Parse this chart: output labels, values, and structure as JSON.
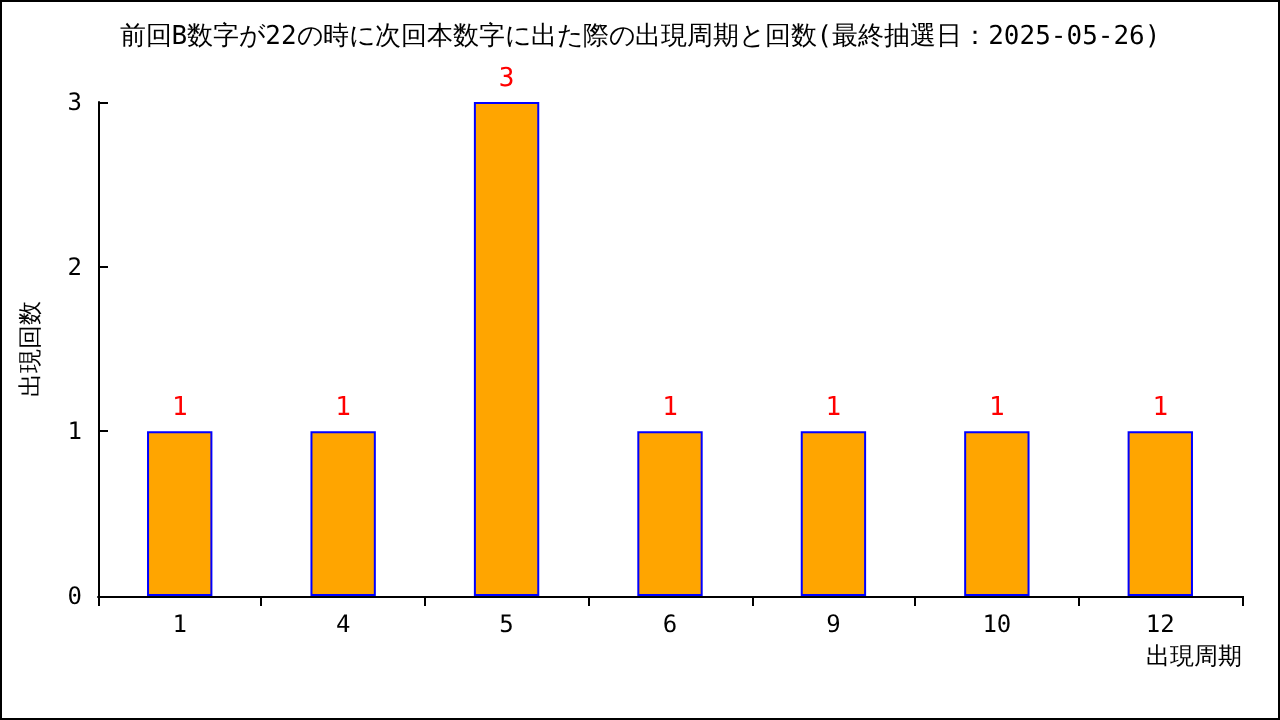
{
  "chart_data": {
    "type": "bar",
    "title": "前回B数字が22の時に次回本数字に出た際の出現周期と回数(最終抽選日：2025-05-26)",
    "xlabel": "出現周期",
    "ylabel": "出現回数",
    "categories": [
      "1",
      "4",
      "5",
      "6",
      "9",
      "10",
      "12"
    ],
    "series": [
      {
        "color": "#ffa500",
        "values": [
          1,
          1,
          3,
          1,
          1,
          1,
          1
        ]
      }
    ],
    "ylim": [
      0,
      3
    ],
    "yticks": [
      0,
      1,
      2,
      3
    ],
    "grid": false,
    "data_labels": true
  }
}
